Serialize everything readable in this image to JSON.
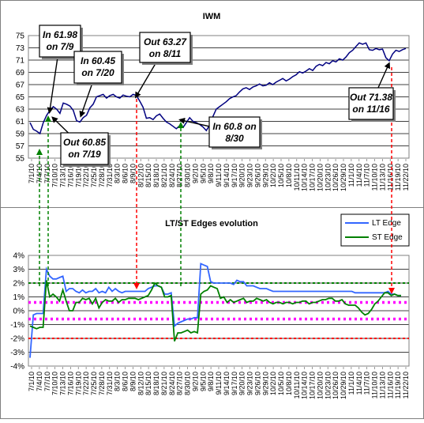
{
  "colors": {
    "price_line": "#000080",
    "lt_edge": "#3366ff",
    "st_edge": "#008000",
    "green_dash": "#008000",
    "red_dash": "#ff0000",
    "magenta_dot": "#ff00ff"
  },
  "chart_data": [
    {
      "type": "line",
      "title": "IWM",
      "ylim": [
        55,
        75
      ],
      "yticks": [
        55,
        57,
        59,
        61,
        63,
        65,
        67,
        69,
        71,
        73,
        75
      ],
      "x_labels": [
        "7/1/10",
        "7/4/10",
        "7/7/10",
        "7/10/10",
        "7/13/10",
        "7/16/10",
        "7/19/10",
        "7/22/10",
        "7/25/10",
        "7/28/10",
        "7/31/10",
        "8/3/10",
        "8/6/10",
        "8/9/10",
        "8/12/10",
        "8/15/10",
        "8/18/10",
        "8/21/10",
        "8/24/10",
        "8/27/10",
        "8/30/10",
        "9/2/10",
        "9/5/10",
        "9/8/10",
        "9/11/10",
        "9/14/10",
        "9/17/10",
        "9/20/10",
        "9/23/10",
        "9/26/10",
        "9/29/10",
        "10/2/10",
        "10/5/10",
        "10/8/10",
        "10/11/10",
        "10/14/10",
        "10/17/10",
        "10/20/10",
        "10/23/10",
        "10/26/10",
        "10/29/10",
        "11/1/10",
        "11/4/10",
        "11/7/10",
        "11/10/10",
        "11/13/10",
        "11/16/10",
        "11/19/10",
        "11/22/10"
      ],
      "series": [
        {
          "values": [
            60.8,
            59.7,
            59.4,
            59.0,
            60.8,
            62.0,
            62.8,
            63.4,
            63.0,
            62.3,
            64.0,
            63.8,
            63.5,
            62.8,
            61.1,
            60.9,
            61.6,
            62.0,
            63.2,
            63.8,
            65.0,
            65.2,
            65.4,
            64.8,
            65.2,
            65.4,
            65.0,
            64.8,
            65.3,
            65.1,
            65.0,
            65.4,
            65.2,
            64.3,
            63.3,
            61.5,
            61.6,
            61.3,
            61.9,
            62.2,
            61.5,
            60.9,
            60.6,
            60.2,
            59.8,
            60.3,
            60.0,
            60.8,
            61.6,
            61.0,
            60.8,
            60.5,
            60.1,
            59.5,
            60.4,
            61.8,
            63.0,
            63.4,
            63.8,
            64.2,
            64.7,
            65.0,
            65.2,
            65.8,
            66.3,
            66.5,
            66.2,
            66.6,
            66.8,
            67.1,
            66.8,
            66.9,
            67.3,
            67.0,
            67.4,
            67.7,
            68.0,
            67.6,
            67.9,
            68.3,
            68.6,
            69.1,
            68.9,
            69.2,
            69.6,
            69.3,
            70.0,
            70.3,
            70.1,
            70.6,
            70.4,
            70.9,
            70.7,
            71.2,
            71.0,
            71.5,
            72.2,
            72.6,
            73.2,
            73.8,
            73.6,
            73.8,
            72.7,
            72.6,
            72.9,
            72.7,
            72.8,
            71.4,
            70.9,
            72.0,
            72.6,
            72.4,
            72.7,
            72.9
          ]
        }
      ],
      "annotations": [
        {
          "text_lines": [
            "In 61.98",
            "on 7/9"
          ]
        },
        {
          "text_lines": [
            "In 60.45",
            "on 7/20"
          ]
        },
        {
          "text_lines": [
            "Out 63.27",
            "on 8/11"
          ]
        },
        {
          "text_lines": [
            "Out 60.85",
            "on 7/19"
          ]
        },
        {
          "text_lines": [
            "In 60.8 on",
            "8/30"
          ]
        },
        {
          "text_lines": [
            "Out 71.38",
            "on 11/16"
          ]
        }
      ]
    },
    {
      "type": "line",
      "title": "LT/ST Edges evolution",
      "ylim": [
        -4,
        4
      ],
      "yticks": [
        "4%",
        "3%",
        "2%",
        "1%",
        "0%",
        "-1%",
        "-2%",
        "-3%",
        "-4%"
      ],
      "x_labels": [
        "7/1/10",
        "7/4/10",
        "7/7/10",
        "7/10/10",
        "7/13/10",
        "7/16/10",
        "7/19/10",
        "7/22/10",
        "7/25/10",
        "7/28/10",
        "7/31/10",
        "8/3/10",
        "8/6/10",
        "8/9/10",
        "8/12/10",
        "8/15/10",
        "8/18/10",
        "8/21/10",
        "8/24/10",
        "8/27/10",
        "8/30/10",
        "9/2/10",
        "9/5/10",
        "9/8/10",
        "9/11/10",
        "9/14/10",
        "9/17/10",
        "9/20/10",
        "9/23/10",
        "9/26/10",
        "9/29/10",
        "10/2/10",
        "10/5/10",
        "10/8/10",
        "10/11/10",
        "10/14/10",
        "10/17/10",
        "10/20/10",
        "10/23/10",
        "10/26/10",
        "10/29/10",
        "11/1/10",
        "11/4/10",
        "11/7/10",
        "11/10/10",
        "11/13/10",
        "11/16/10",
        "11/19/10",
        "11/22/10"
      ],
      "legend": {
        "position": "top-right",
        "entries": [
          "LT Edge",
          "ST Edge"
        ]
      },
      "reference_lines": {
        "green": 2.0,
        "red": -2.0,
        "magenta": [
          0.6,
          -0.6
        ]
      },
      "series": [
        {
          "name": "LT Edge",
          "values": [
            -3.4,
            -0.3,
            -0.2,
            -0.2,
            -0.2,
            3.0,
            2.5,
            2.3,
            2.3,
            2.4,
            2.5,
            1.4,
            1.6,
            1.6,
            1.4,
            1.3,
            1.5,
            1.3,
            1.4,
            1.4,
            1.6,
            1.3,
            1.4,
            1.3,
            1.7,
            1.4,
            1.6,
            1.4,
            1.3,
            1.4,
            1.4,
            1.4,
            1.4,
            1.4,
            1.4,
            1.4,
            1.6,
            1.7,
            1.8,
            1.8,
            1.7,
            1.2,
            1.2,
            1.3,
            -1.1,
            -0.9,
            -0.8,
            -0.7,
            -0.6,
            -0.6,
            -0.5,
            -0.5,
            3.4,
            3.3,
            3.2,
            2.1,
            2.0,
            2.0,
            2.0,
            2.0,
            2.0,
            2.0,
            1.9,
            2.2,
            2.1,
            2.1,
            1.8,
            1.8,
            1.8,
            1.7,
            1.6,
            1.6,
            1.6,
            1.5,
            1.4,
            1.4,
            1.4,
            1.4,
            1.4,
            1.4,
            1.4,
            1.4,
            1.4,
            1.4,
            1.4,
            1.4,
            1.4,
            1.4,
            1.4,
            1.4,
            1.4,
            1.4,
            1.4,
            1.4,
            1.4,
            1.4,
            1.4,
            1.4,
            1.4,
            1.3,
            1.3,
            1.3,
            1.3,
            1.3,
            1.3,
            1.3,
            1.3,
            1.3,
            1.3,
            1.4,
            1.2,
            1.2,
            1.1,
            1.1
          ]
        },
        {
          "name": "ST Edge",
          "values": [
            -1.1,
            -1.2,
            -1.3,
            -1.2,
            -1.2,
            2.2,
            1.0,
            1.2,
            1.0,
            0.7,
            1.5,
            0.7,
            0.0,
            0.0,
            0.6,
            0.6,
            0.9,
            0.8,
            0.9,
            0.5,
            0.9,
            0.2,
            0.6,
            0.8,
            0.7,
            0.7,
            0.9,
            0.6,
            0.8,
            0.8,
            0.9,
            0.9,
            0.9,
            0.8,
            0.9,
            1.0,
            1.1,
            1.5,
            2.0,
            1.8,
            1.7,
            1.0,
            1.0,
            1.1,
            -2.2,
            -1.6,
            -1.6,
            -1.5,
            -1.4,
            -1.6,
            -1.5,
            -1.6,
            1.2,
            1.4,
            1.5,
            1.8,
            1.7,
            1.6,
            0.9,
            1.0,
            0.6,
            0.8,
            0.6,
            0.7,
            0.8,
            0.9,
            0.6,
            0.7,
            0.7,
            0.9,
            0.8,
            0.7,
            0.8,
            0.6,
            0.5,
            0.6,
            0.6,
            0.5,
            0.6,
            0.6,
            0.5,
            0.6,
            0.6,
            0.7,
            0.7,
            0.5,
            0.6,
            0.6,
            0.7,
            0.8,
            0.8,
            0.9,
            0.9,
            0.7,
            0.7,
            0.8,
            0.5,
            0.4,
            0.4,
            0.4,
            0.2,
            -0.1,
            -0.3,
            -0.2,
            0.1,
            0.5,
            0.7,
            1.0,
            1.3,
            1.3,
            1.1,
            1.2,
            1.1,
            1.1
          ]
        }
      ]
    }
  ]
}
